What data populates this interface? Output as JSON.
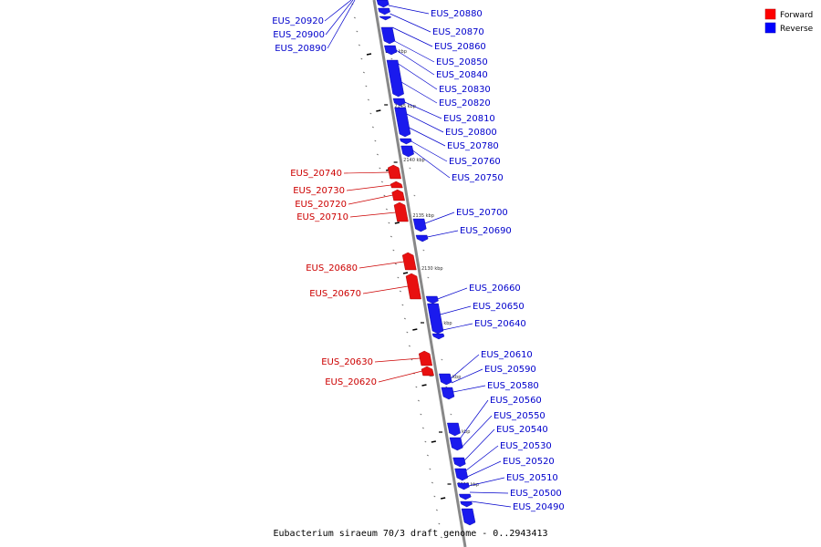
{
  "caption": "Eubacterium siraeum 70/3 draft genome - 0..2943413",
  "legend": [
    {
      "label": "Forward",
      "color": "#ff0000"
    },
    {
      "label": "Reverse",
      "color": "#0000ff"
    }
  ],
  "colors": {
    "forward": "#e81010",
    "reverse": "#1a1aee",
    "forward_text": "#cc0000",
    "reverse_text": "#0000cc"
  },
  "scale_marks": [
    "2150 kbp",
    "2145 kbp",
    "2140 kbp",
    "2135 kbp",
    "2130 kbp",
    "2125 kbp",
    "2120 kbp",
    "2115 kbp",
    "2110 kbp"
  ],
  "genes_reverse": [
    "EUS_20880",
    "EUS_20870",
    "EUS_20860",
    "EUS_20850",
    "EUS_20840",
    "EUS_20830",
    "EUS_20820",
    "EUS_20810",
    "EUS_20800",
    "EUS_20780",
    "EUS_20760",
    "EUS_20750",
    "EUS_20700",
    "EUS_20690",
    "EUS_20660",
    "EUS_20650",
    "EUS_20640",
    "EUS_20610",
    "EUS_20590",
    "EUS_20580",
    "EUS_20560",
    "EUS_20550",
    "EUS_20540",
    "EUS_20530",
    "EUS_20520",
    "EUS_20510",
    "EUS_20500",
    "EUS_20490"
  ],
  "genes_reverse_top_left": [
    "EUS_20920",
    "EUS_20900",
    "EUS_20890"
  ],
  "genes_forward": [
    "EUS_20740",
    "EUS_20730",
    "EUS_20720",
    "EUS_20710",
    "EUS_20680",
    "EUS_20670",
    "EUS_20630",
    "EUS_20620"
  ]
}
